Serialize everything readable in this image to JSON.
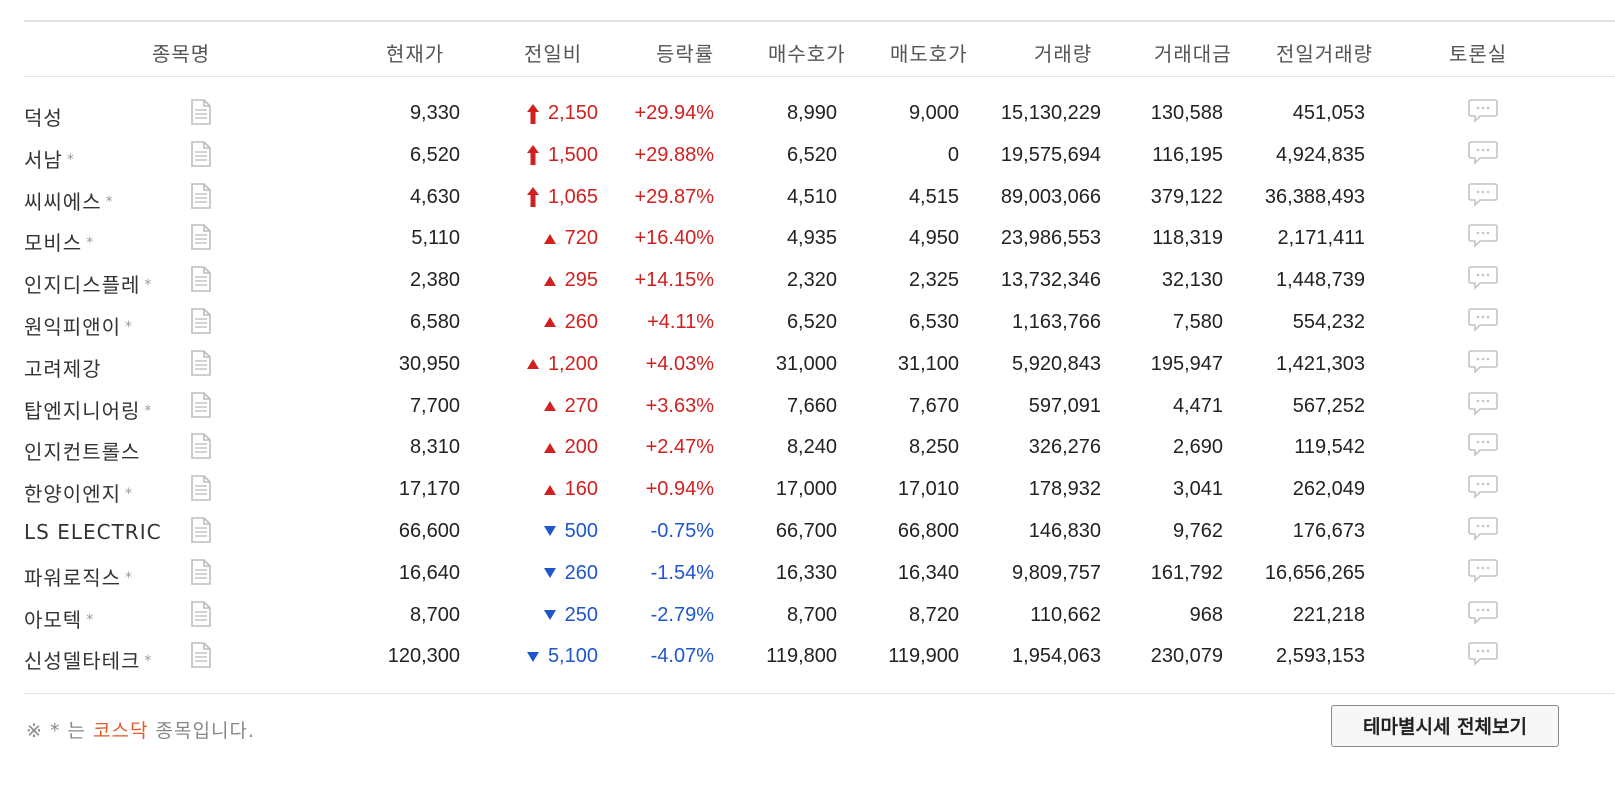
{
  "header": {
    "name": "종목명",
    "price": "현재가",
    "diff": "전일비",
    "rate": "등락률",
    "bid": "매수호가",
    "ask": "매도호가",
    "volume": "거래량",
    "amount": "거래대금",
    "prev_volume": "전일거래량",
    "forum": "토론실"
  },
  "rows": [
    {
      "name": "덕성",
      "star": "",
      "price": "9,330",
      "dir": "limit-up",
      "diff": "2,150",
      "rate": "+29.94%",
      "bid": "8,990",
      "ask": "9,000",
      "volume": "15,130,229",
      "amount": "130,588",
      "prev_volume": "451,053"
    },
    {
      "name": "서남",
      "star": "*",
      "price": "6,520",
      "dir": "limit-up",
      "diff": "1,500",
      "rate": "+29.88%",
      "bid": "6,520",
      "ask": "0",
      "volume": "19,575,694",
      "amount": "116,195",
      "prev_volume": "4,924,835"
    },
    {
      "name": "씨씨에스",
      "star": "*",
      "price": "4,630",
      "dir": "limit-up",
      "diff": "1,065",
      "rate": "+29.87%",
      "bid": "4,510",
      "ask": "4,515",
      "volume": "89,003,066",
      "amount": "379,122",
      "prev_volume": "36,388,493"
    },
    {
      "name": "모비스",
      "star": "*",
      "price": "5,110",
      "dir": "up",
      "diff": "720",
      "rate": "+16.40%",
      "bid": "4,935",
      "ask": "4,950",
      "volume": "23,986,553",
      "amount": "118,319",
      "prev_volume": "2,171,411"
    },
    {
      "name": "인지디스플레",
      "star": "*",
      "price": "2,380",
      "dir": "up",
      "diff": "295",
      "rate": "+14.15%",
      "bid": "2,320",
      "ask": "2,325",
      "volume": "13,732,346",
      "amount": "32,130",
      "prev_volume": "1,448,739"
    },
    {
      "name": "원익피앤이",
      "star": "*",
      "price": "6,580",
      "dir": "up",
      "diff": "260",
      "rate": "+4.11%",
      "bid": "6,520",
      "ask": "6,530",
      "volume": "1,163,766",
      "amount": "7,580",
      "prev_volume": "554,232"
    },
    {
      "name": "고려제강",
      "star": "",
      "price": "30,950",
      "dir": "up",
      "diff": "1,200",
      "rate": "+4.03%",
      "bid": "31,000",
      "ask": "31,100",
      "volume": "5,920,843",
      "amount": "195,947",
      "prev_volume": "1,421,303"
    },
    {
      "name": "탑엔지니어링",
      "star": "*",
      "price": "7,700",
      "dir": "up",
      "diff": "270",
      "rate": "+3.63%",
      "bid": "7,660",
      "ask": "7,670",
      "volume": "597,091",
      "amount": "4,471",
      "prev_volume": "567,252"
    },
    {
      "name": "인지컨트롤스",
      "star": "",
      "price": "8,310",
      "dir": "up",
      "diff": "200",
      "rate": "+2.47%",
      "bid": "8,240",
      "ask": "8,250",
      "volume": "326,276",
      "amount": "2,690",
      "prev_volume": "119,542"
    },
    {
      "name": "한양이엔지",
      "star": "*",
      "price": "17,170",
      "dir": "up",
      "diff": "160",
      "rate": "+0.94%",
      "bid": "17,000",
      "ask": "17,010",
      "volume": "178,932",
      "amount": "3,041",
      "prev_volume": "262,049"
    },
    {
      "name": "LS ELECTRIC",
      "star": "",
      "price": "66,600",
      "dir": "down",
      "diff": "500",
      "rate": "-0.75%",
      "bid": "66,700",
      "ask": "66,800",
      "volume": "146,830",
      "amount": "9,762",
      "prev_volume": "176,673"
    },
    {
      "name": "파워로직스",
      "star": "*",
      "price": "16,640",
      "dir": "down",
      "diff": "260",
      "rate": "-1.54%",
      "bid": "16,330",
      "ask": "16,340",
      "volume": "9,809,757",
      "amount": "161,792",
      "prev_volume": "16,656,265"
    },
    {
      "name": "아모텍",
      "star": "*",
      "price": "8,700",
      "dir": "down",
      "diff": "250",
      "rate": "-2.79%",
      "bid": "8,700",
      "ask": "8,720",
      "volume": "110,662",
      "amount": "968",
      "prev_volume": "221,218"
    },
    {
      "name": "신성델타테크",
      "star": "*",
      "price": "120,300",
      "dir": "down",
      "diff": "5,100",
      "rate": "-4.07%",
      "bid": "119,800",
      "ask": "119,900",
      "volume": "1,954,063",
      "amount": "230,079",
      "prev_volume": "2,593,153"
    }
  ],
  "footer": {
    "note_prefix": "※ * 는 ",
    "note_kosdaq": "코스닥",
    "note_suffix": " 종목입니다.",
    "theme_button": "테마별시세 전체보기"
  },
  "colors": {
    "up": "#d02020",
    "down": "#1f56cc",
    "kosdaq": "#e05a2a"
  },
  "icons": {
    "doc": "document-icon",
    "chat": "chat-bubble-icon",
    "limit_up": "limit-up-arrow-icon",
    "up": "up-triangle-icon",
    "down": "down-triangle-icon"
  }
}
